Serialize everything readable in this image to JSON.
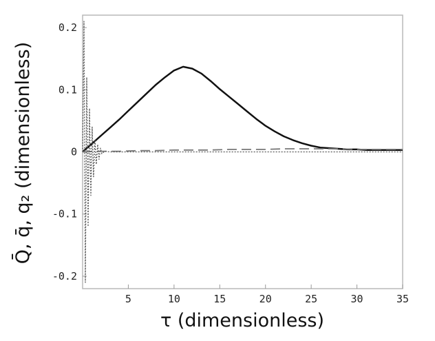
{
  "chart_data": {
    "type": "line",
    "xlabel": "τ (dimensionless)",
    "ylabel": "Q̄, q̄, q₂ (dimensionless)",
    "xlim": [
      0,
      35
    ],
    "ylim": [
      -0.22,
      0.22
    ],
    "x_ticks": [
      {
        "value": 5,
        "label": "5"
      },
      {
        "value": 10,
        "label": "10"
      },
      {
        "value": 15,
        "label": "15"
      },
      {
        "value": 20,
        "label": "20"
      },
      {
        "value": 25,
        "label": "25"
      },
      {
        "value": 30,
        "label": "30"
      },
      {
        "value": 35,
        "label": "35"
      }
    ],
    "y_ticks": [
      {
        "value": -0.2,
        "label": "-0.2"
      },
      {
        "value": -0.1,
        "label": "-0.1"
      },
      {
        "value": 0,
        "label": "0"
      },
      {
        "value": 0.1,
        "label": "0.1"
      },
      {
        "value": 0.2,
        "label": "0.2"
      }
    ],
    "grid": false,
    "series": [
      {
        "style": "solid",
        "color": "#111111",
        "x": [
          0,
          1,
          2,
          3,
          4,
          5,
          6,
          7,
          8,
          9,
          10,
          11,
          12,
          13,
          14,
          15,
          16,
          17,
          18,
          19,
          20,
          21,
          22,
          23,
          24,
          25,
          26,
          27,
          28,
          29,
          30,
          31,
          32,
          33,
          34,
          35
        ],
        "y": [
          0,
          0.013,
          0.026,
          0.039,
          0.052,
          0.066,
          0.08,
          0.094,
          0.108,
          0.12,
          0.131,
          0.137,
          0.134,
          0.126,
          0.114,
          0.101,
          0.089,
          0.077,
          0.065,
          0.053,
          0.042,
          0.033,
          0.025,
          0.019,
          0.014,
          0.01,
          0.007,
          0.006,
          0.005,
          0.004,
          0.004,
          0.003,
          0.003,
          0.003,
          0.003,
          0.003
        ]
      },
      {
        "style": "dashed",
        "color": "#777777",
        "x": [
          0,
          2,
          4,
          6,
          8,
          10,
          12,
          14,
          16,
          18,
          20,
          22,
          24,
          26,
          28,
          30,
          32,
          34,
          35
        ],
        "y": [
          0,
          0.001,
          0.001,
          0.002,
          0.002,
          0.003,
          0.003,
          0.003,
          0.004,
          0.004,
          0.004,
          0.005,
          0.005,
          0.005,
          0.005,
          0.004,
          0.004,
          0.004,
          0.004
        ]
      },
      {
        "style": "dotted",
        "color": "#555555",
        "x": [
          0,
          0.15,
          0.3,
          0.45,
          0.6,
          0.75,
          0.9,
          1.05,
          1.2,
          1.35,
          1.5,
          1.65,
          1.8,
          1.95,
          2.1,
          2.4,
          3,
          4,
          35
        ],
        "y": [
          0,
          0.21,
          -0.21,
          0.12,
          -0.12,
          0.07,
          -0.07,
          0.04,
          -0.04,
          0.02,
          -0.02,
          0.012,
          -0.012,
          0.006,
          -0.003,
          0.001,
          0,
          0,
          0
        ]
      }
    ]
  }
}
